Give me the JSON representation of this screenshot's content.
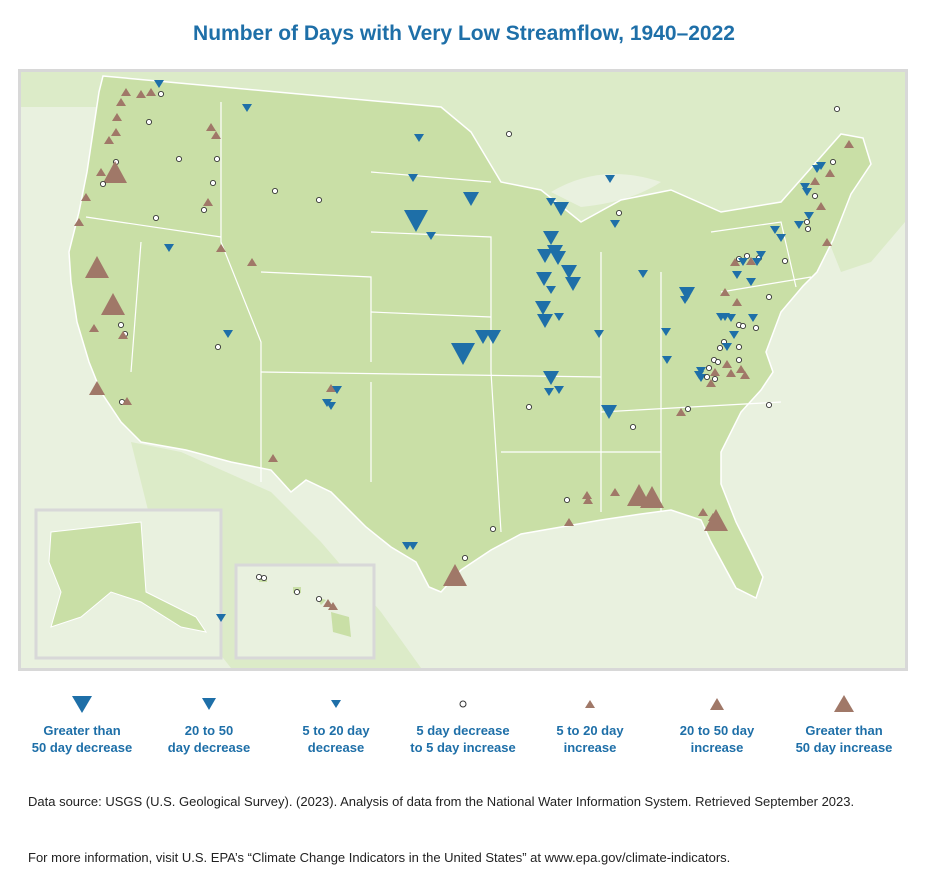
{
  "title": "Number of Days with Very Low Streamflow, 1940–2022",
  "colors": {
    "decrease": "#1e6fa8",
    "increase": "#a07868",
    "no_change_fill": "#ffffff",
    "land": "#c9dfa6",
    "land_light": "#dcebc8",
    "background": "#e9f1df",
    "border": "#ffffff",
    "title": "#1e6fa8"
  },
  "legend": [
    {
      "key": "gt50_dec",
      "label_line1": "Greater than",
      "label_line2": "50 day decrease",
      "shape": "triangle-down",
      "size": "large"
    },
    {
      "key": "dec_20_50",
      "label_line1": "20 to 50",
      "label_line2": "day decrease",
      "shape": "triangle-down",
      "size": "medium"
    },
    {
      "key": "dec_5_20",
      "label_line1": "5 to 20 day",
      "label_line2": "decrease",
      "shape": "triangle-down",
      "size": "small"
    },
    {
      "key": "no_change",
      "label_line1": "5 day decrease",
      "label_line2": "to 5 day increase",
      "shape": "circle",
      "size": "small"
    },
    {
      "key": "inc_5_20",
      "label_line1": "5 to 20 day",
      "label_line2": "increase",
      "shape": "triangle-up",
      "size": "small"
    },
    {
      "key": "inc_20_50",
      "label_line1": "20 to 50 day",
      "label_line2": "increase",
      "shape": "triangle-up",
      "size": "medium"
    },
    {
      "key": "gt50_inc",
      "label_line1": "Greater than",
      "label_line2": "50 day increase",
      "shape": "triangle-up",
      "size": "large"
    }
  ],
  "insets": [
    "Alaska",
    "Hawaii"
  ],
  "source_text": "Data source: USGS (U.S. Geological Survey). (2023). Analysis of data from the National Water Information System. Retrieved September 2023.",
  "more_info_text": "For more information, visit U.S. EPA’s “Climate Change Indicators in the United States” at www.epa.gov/climate-indicators."
}
